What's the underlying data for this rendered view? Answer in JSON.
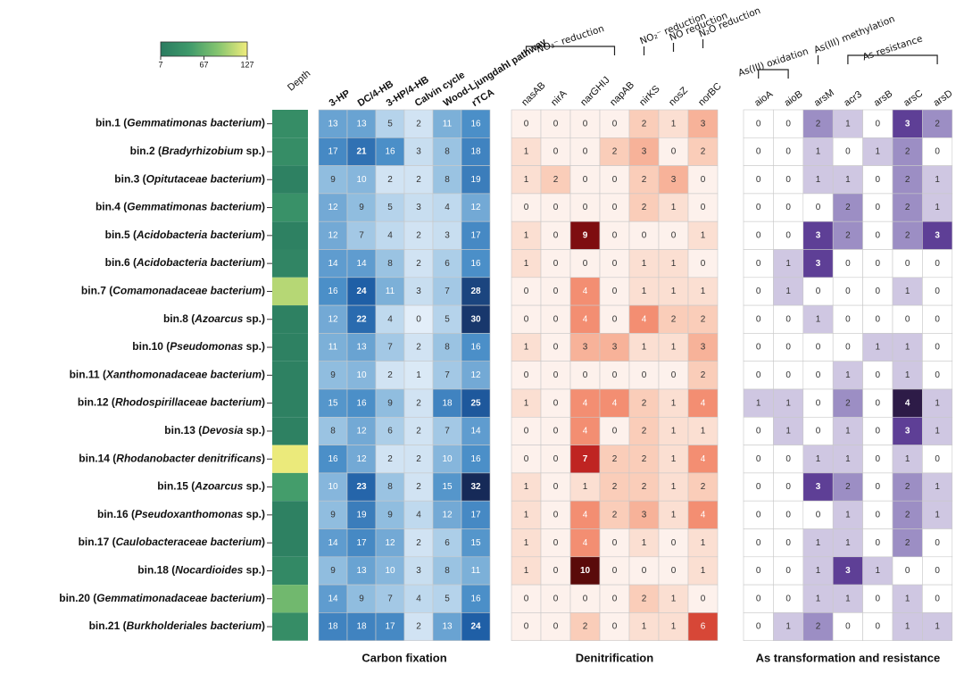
{
  "chart_data": {
    "type": "heatmap",
    "rows": [
      "bin.1 (Gemmatimonas bacterium)",
      "bin.2 (Bradyrhizobium sp.)",
      "bin.3 (Opitutaceae bacterium)",
      "bin.4 (Gemmatimonas bacterium)",
      "bin.5 (Acidobacteria bacterium)",
      "bin.6 (Acidobacteria bacterium)",
      "bin.7 (Comamonadaceae bacterium)",
      "bin.8 (Azoarcus sp.)",
      "bin.10 (Pseudomonas sp.)",
      "bin.11 (Xanthomonadaceae bacterium)",
      "bin.12 (Rhodospirillaceae bacterium)",
      "bin.13 (Devosia sp.)",
      "bin.14 (Rhodanobacter denitrificans)",
      "bin.15 (Azoarcus sp.)",
      "bin.16 (Pseudoxanthomonas sp.)",
      "bin.17 (Caulobacteraceae bacterium)",
      "bin.18 (Nocardioides sp.)",
      "bin.20 (Gemmatimonadaceae bacterium)",
      "bin.21 (Burkholderiales bacterium)"
    ],
    "depth": {
      "header": "Depth",
      "lim": [
        7,
        127
      ],
      "ticks": [
        7,
        67,
        127
      ],
      "colors": [
        "#2a7b60",
        "#3f9a6b",
        "#86c56f",
        "#f0ec7c"
      ],
      "values": [
        30,
        30,
        15,
        35,
        15,
        20,
        105,
        15,
        15,
        15,
        15,
        15,
        125,
        50,
        15,
        15,
        25,
        75,
        30
      ]
    },
    "panels": [
      {
        "title": "Carbon fixation",
        "columns": [
          "3-HP",
          "DC/4-HB",
          "3-HP/4-HB",
          "Calvin cycle",
          "Wood-Ljungdahl pathway",
          "rTCA"
        ],
        "colors": [
          "#e3eef9",
          "#9ac3e2",
          "#4b8fc8",
          "#1f5fa6",
          "#162a58"
        ],
        "groups": [],
        "values": [
          [
            13,
            13,
            5,
            2,
            11,
            16
          ],
          [
            17,
            21,
            16,
            3,
            8,
            18
          ],
          [
            9,
            10,
            2,
            2,
            8,
            19
          ],
          [
            12,
            9,
            5,
            3,
            4,
            12
          ],
          [
            12,
            7,
            4,
            2,
            3,
            17
          ],
          [
            14,
            14,
            8,
            2,
            6,
            16
          ],
          [
            16,
            24,
            11,
            3,
            7,
            28
          ],
          [
            12,
            22,
            4,
            0,
            5,
            30
          ],
          [
            11,
            13,
            7,
            2,
            8,
            16
          ],
          [
            9,
            10,
            2,
            1,
            7,
            12
          ],
          [
            15,
            16,
            9,
            2,
            18,
            25
          ],
          [
            8,
            12,
            6,
            2,
            7,
            14
          ],
          [
            16,
            12,
            2,
            2,
            10,
            16
          ],
          [
            10,
            23,
            8,
            2,
            15,
            32
          ],
          [
            9,
            19,
            9,
            4,
            12,
            17
          ],
          [
            14,
            17,
            12,
            2,
            6,
            15
          ],
          [
            9,
            13,
            10,
            3,
            8,
            11
          ],
          [
            14,
            9,
            7,
            4,
            5,
            16
          ],
          [
            18,
            18,
            17,
            2,
            13,
            24
          ]
        ]
      },
      {
        "title": "Denitrification",
        "columns": [
          "nasAB",
          "nirA",
          "narGHIJ",
          "napAB",
          "nirKS",
          "nosZ",
          "norBC"
        ],
        "colors": [
          "#fdf1ec",
          "#f9c4ac",
          "#ef6a4c",
          "#b31218",
          "#5a0a0a"
        ],
        "groups": [
          "NO₃⁻ reduction",
          "NO₂⁻ reduction",
          "NO reduction",
          "N₂O reduction"
        ],
        "values": [
          [
            0,
            0,
            0,
            0,
            2,
            1,
            3
          ],
          [
            1,
            0,
            0,
            2,
            3,
            0,
            2
          ],
          [
            1,
            2,
            0,
            0,
            2,
            3,
            0
          ],
          [
            0,
            0,
            0,
            0,
            2,
            1,
            0
          ],
          [
            1,
            0,
            9,
            0,
            0,
            0,
            1
          ],
          [
            1,
            0,
            0,
            0,
            1,
            1,
            0
          ],
          [
            0,
            0,
            4,
            0,
            1,
            1,
            1
          ],
          [
            0,
            0,
            4,
            0,
            4,
            2,
            2
          ],
          [
            1,
            0,
            3,
            3,
            1,
            1,
            3
          ],
          [
            0,
            0,
            0,
            0,
            0,
            0,
            2
          ],
          [
            1,
            0,
            4,
            4,
            2,
            1,
            4
          ],
          [
            0,
            0,
            4,
            0,
            2,
            1,
            1
          ],
          [
            0,
            0,
            7,
            2,
            2,
            1,
            4
          ],
          [
            1,
            0,
            1,
            2,
            2,
            1,
            2
          ],
          [
            1,
            0,
            4,
            2,
            3,
            1,
            4
          ],
          [
            1,
            0,
            4,
            0,
            1,
            0,
            1
          ],
          [
            1,
            0,
            10,
            0,
            0,
            0,
            1
          ],
          [
            0,
            0,
            0,
            0,
            2,
            1,
            0
          ],
          [
            0,
            0,
            2,
            0,
            1,
            1,
            6
          ]
        ]
      },
      {
        "title": "As transformation and resistance",
        "columns": [
          "aioA",
          "aioB",
          "arsM",
          "acr3",
          "arsB",
          "arsC",
          "arsD"
        ],
        "colors": [
          "#ffffff",
          "#cfc7e2",
          "#9c8ec4",
          "#5e3f96",
          "#2d1b47"
        ],
        "groups": [
          "As(III) oxidation",
          "As(III) methylation",
          "As resistance"
        ],
        "values": [
          [
            0,
            0,
            2,
            1,
            0,
            3,
            2
          ],
          [
            0,
            0,
            1,
            0,
            1,
            2,
            0
          ],
          [
            0,
            0,
            1,
            1,
            0,
            2,
            1
          ],
          [
            0,
            0,
            0,
            2,
            0,
            2,
            1
          ],
          [
            0,
            0,
            3,
            2,
            0,
            2,
            3
          ],
          [
            0,
            1,
            3,
            0,
            0,
            0,
            0
          ],
          [
            0,
            1,
            0,
            0,
            0,
            1,
            0
          ],
          [
            0,
            0,
            1,
            0,
            0,
            0,
            0
          ],
          [
            0,
            0,
            0,
            0,
            1,
            1,
            0
          ],
          [
            0,
            0,
            0,
            1,
            0,
            1,
            0
          ],
          [
            1,
            1,
            0,
            2,
            0,
            4,
            1
          ],
          [
            0,
            1,
            0,
            1,
            0,
            3,
            1
          ],
          [
            0,
            0,
            1,
            1,
            0,
            1,
            0
          ],
          [
            0,
            0,
            3,
            2,
            0,
            2,
            1
          ],
          [
            0,
            0,
            0,
            1,
            0,
            2,
            1
          ],
          [
            0,
            0,
            1,
            1,
            0,
            2,
            0
          ],
          [
            0,
            0,
            1,
            3,
            1,
            0,
            0
          ],
          [
            0,
            0,
            1,
            1,
            0,
            1,
            0
          ],
          [
            0,
            1,
            2,
            0,
            0,
            1,
            1
          ]
        ]
      }
    ]
  }
}
